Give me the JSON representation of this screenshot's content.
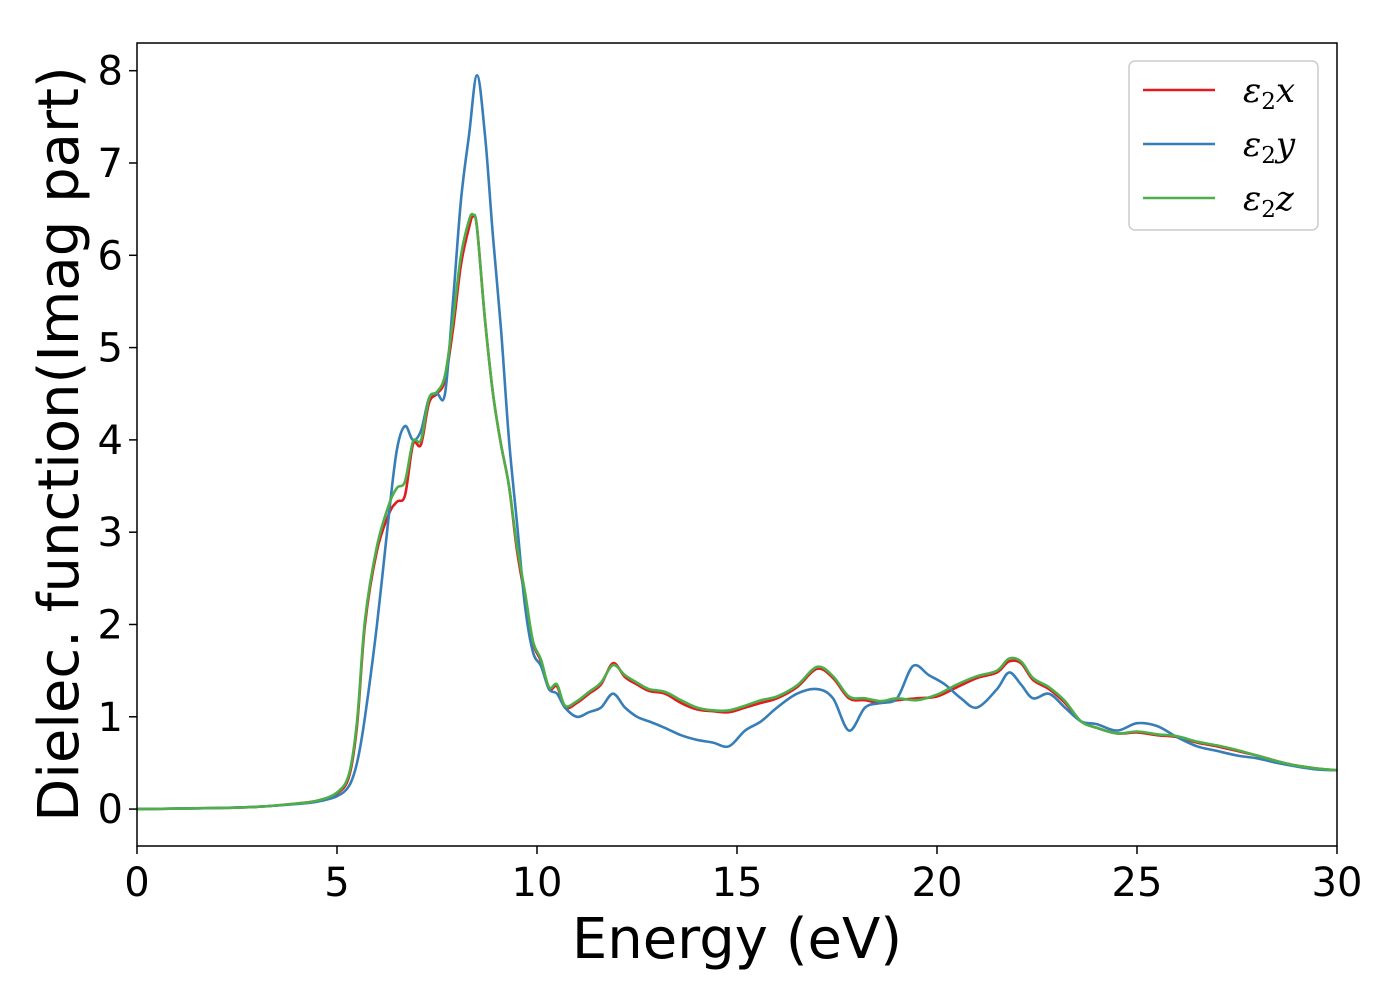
{
  "chart_data": {
    "type": "line",
    "title": "",
    "xlabel": "Energy (eV)",
    "ylabel": "Dielec. function(Imag part)",
    "xlim": [
      0,
      30
    ],
    "ylim": [
      -0.4,
      8.3
    ],
    "xticks": [
      "0",
      "5",
      "10",
      "15",
      "20",
      "25",
      "30"
    ],
    "yticks": [
      "0",
      "1",
      "2",
      "3",
      "4",
      "5",
      "6",
      "7",
      "8"
    ],
    "grid": false,
    "legend_position": "top-right",
    "series": [
      {
        "name": "ε₂x",
        "legend": {
          "base": "ε",
          "sub": "2",
          "tail": "x"
        },
        "color": "#e41a1c",
        "points": [
          [
            0,
            0.0
          ],
          [
            1,
            0.005
          ],
          [
            2,
            0.012
          ],
          [
            3,
            0.025
          ],
          [
            4,
            0.06
          ],
          [
            4.5,
            0.09
          ],
          [
            5,
            0.17
          ],
          [
            5.3,
            0.35
          ],
          [
            5.5,
            0.9
          ],
          [
            5.7,
            2.0
          ],
          [
            6.0,
            2.8
          ],
          [
            6.3,
            3.2
          ],
          [
            6.5,
            3.33
          ],
          [
            6.7,
            3.4
          ],
          [
            6.9,
            3.95
          ],
          [
            7.1,
            3.95
          ],
          [
            7.3,
            4.4
          ],
          [
            7.5,
            4.5
          ],
          [
            7.7,
            4.65
          ],
          [
            7.9,
            5.2
          ],
          [
            8.1,
            5.9
          ],
          [
            8.3,
            6.3
          ],
          [
            8.4,
            6.42
          ],
          [
            8.5,
            6.3
          ],
          [
            8.7,
            5.3
          ],
          [
            8.9,
            4.5
          ],
          [
            9.1,
            3.95
          ],
          [
            9.3,
            3.5
          ],
          [
            9.5,
            2.8
          ],
          [
            9.7,
            2.3
          ],
          [
            9.9,
            1.8
          ],
          [
            10.1,
            1.6
          ],
          [
            10.3,
            1.3
          ],
          [
            10.5,
            1.33
          ],
          [
            10.7,
            1.1
          ],
          [
            11.0,
            1.15
          ],
          [
            11.3,
            1.25
          ],
          [
            11.6,
            1.35
          ],
          [
            11.9,
            1.58
          ],
          [
            12.2,
            1.43
          ],
          [
            12.5,
            1.35
          ],
          [
            12.8,
            1.28
          ],
          [
            13.2,
            1.25
          ],
          [
            13.6,
            1.15
          ],
          [
            14.0,
            1.08
          ],
          [
            14.4,
            1.06
          ],
          [
            14.8,
            1.05
          ],
          [
            15.2,
            1.1
          ],
          [
            15.6,
            1.15
          ],
          [
            16.0,
            1.2
          ],
          [
            16.5,
            1.32
          ],
          [
            17.0,
            1.52
          ],
          [
            17.4,
            1.42
          ],
          [
            17.8,
            1.2
          ],
          [
            18.2,
            1.18
          ],
          [
            18.6,
            1.15
          ],
          [
            19.0,
            1.18
          ],
          [
            19.5,
            1.2
          ],
          [
            20.0,
            1.22
          ],
          [
            20.5,
            1.32
          ],
          [
            21.0,
            1.42
          ],
          [
            21.5,
            1.48
          ],
          [
            21.8,
            1.6
          ],
          [
            22.1,
            1.58
          ],
          [
            22.4,
            1.4
          ],
          [
            22.8,
            1.3
          ],
          [
            23.2,
            1.15
          ],
          [
            23.6,
            0.95
          ],
          [
            24.0,
            0.88
          ],
          [
            24.5,
            0.82
          ],
          [
            25.0,
            0.83
          ],
          [
            25.5,
            0.8
          ],
          [
            26.0,
            0.78
          ],
          [
            26.5,
            0.72
          ],
          [
            27.0,
            0.68
          ],
          [
            27.5,
            0.63
          ],
          [
            28.0,
            0.58
          ],
          [
            28.5,
            0.52
          ],
          [
            29.0,
            0.47
          ],
          [
            29.5,
            0.44
          ],
          [
            30.0,
            0.42
          ]
        ]
      },
      {
        "name": "ε₂y",
        "legend": {
          "base": "ε",
          "sub": "2",
          "tail": "y"
        },
        "color": "#377eb8",
        "points": [
          [
            0,
            0.0
          ],
          [
            1,
            0.005
          ],
          [
            2,
            0.012
          ],
          [
            3,
            0.025
          ],
          [
            4,
            0.055
          ],
          [
            4.5,
            0.08
          ],
          [
            5,
            0.14
          ],
          [
            5.3,
            0.25
          ],
          [
            5.5,
            0.5
          ],
          [
            5.7,
            1.0
          ],
          [
            6.0,
            2.0
          ],
          [
            6.3,
            3.2
          ],
          [
            6.5,
            3.9
          ],
          [
            6.7,
            4.15
          ],
          [
            6.9,
            4.0
          ],
          [
            7.1,
            4.1
          ],
          [
            7.3,
            4.45
          ],
          [
            7.5,
            4.5
          ],
          [
            7.7,
            4.5
          ],
          [
            7.9,
            5.5
          ],
          [
            8.1,
            6.6
          ],
          [
            8.3,
            7.3
          ],
          [
            8.5,
            7.95
          ],
          [
            8.7,
            7.3
          ],
          [
            8.9,
            6.2
          ],
          [
            9.1,
            5.2
          ],
          [
            9.3,
            4.0
          ],
          [
            9.5,
            3.1
          ],
          [
            9.7,
            2.2
          ],
          [
            9.9,
            1.7
          ],
          [
            10.1,
            1.55
          ],
          [
            10.3,
            1.3
          ],
          [
            10.5,
            1.25
          ],
          [
            10.7,
            1.1
          ],
          [
            11.0,
            1.0
          ],
          [
            11.3,
            1.05
          ],
          [
            11.6,
            1.1
          ],
          [
            11.9,
            1.25
          ],
          [
            12.2,
            1.1
          ],
          [
            12.5,
            1.0
          ],
          [
            12.8,
            0.95
          ],
          [
            13.2,
            0.88
          ],
          [
            13.6,
            0.8
          ],
          [
            14.0,
            0.75
          ],
          [
            14.4,
            0.72
          ],
          [
            14.8,
            0.68
          ],
          [
            15.2,
            0.85
          ],
          [
            15.6,
            0.95
          ],
          [
            16.0,
            1.1
          ],
          [
            16.5,
            1.25
          ],
          [
            17.0,
            1.3
          ],
          [
            17.4,
            1.2
          ],
          [
            17.8,
            0.85
          ],
          [
            18.2,
            1.1
          ],
          [
            18.6,
            1.15
          ],
          [
            19.0,
            1.2
          ],
          [
            19.4,
            1.55
          ],
          [
            19.8,
            1.45
          ],
          [
            20.2,
            1.35
          ],
          [
            20.6,
            1.2
          ],
          [
            21.0,
            1.1
          ],
          [
            21.5,
            1.3
          ],
          [
            21.8,
            1.48
          ],
          [
            22.1,
            1.35
          ],
          [
            22.4,
            1.2
          ],
          [
            22.8,
            1.25
          ],
          [
            23.2,
            1.1
          ],
          [
            23.6,
            0.95
          ],
          [
            24.0,
            0.92
          ],
          [
            24.5,
            0.85
          ],
          [
            25.0,
            0.93
          ],
          [
            25.5,
            0.9
          ],
          [
            26.0,
            0.78
          ],
          [
            26.5,
            0.68
          ],
          [
            27.0,
            0.63
          ],
          [
            27.5,
            0.58
          ],
          [
            28.0,
            0.55
          ],
          [
            28.5,
            0.5
          ],
          [
            29.0,
            0.46
          ],
          [
            29.5,
            0.43
          ],
          [
            30.0,
            0.42
          ]
        ]
      },
      {
        "name": "ε₂z",
        "legend": {
          "base": "ε",
          "sub": "2",
          "tail": "z"
        },
        "color": "#4daf4a",
        "points": [
          [
            0,
            0.0
          ],
          [
            1,
            0.005
          ],
          [
            2,
            0.012
          ],
          [
            3,
            0.025
          ],
          [
            4,
            0.06
          ],
          [
            4.5,
            0.09
          ],
          [
            5,
            0.18
          ],
          [
            5.3,
            0.38
          ],
          [
            5.5,
            0.95
          ],
          [
            5.7,
            2.05
          ],
          [
            6.0,
            2.85
          ],
          [
            6.3,
            3.3
          ],
          [
            6.5,
            3.48
          ],
          [
            6.7,
            3.55
          ],
          [
            6.9,
            3.98
          ],
          [
            7.1,
            4.0
          ],
          [
            7.3,
            4.45
          ],
          [
            7.5,
            4.52
          ],
          [
            7.7,
            4.7
          ],
          [
            7.9,
            5.3
          ],
          [
            8.1,
            6.0
          ],
          [
            8.3,
            6.38
          ],
          [
            8.4,
            6.44
          ],
          [
            8.5,
            6.3
          ],
          [
            8.7,
            5.3
          ],
          [
            8.9,
            4.5
          ],
          [
            9.1,
            3.95
          ],
          [
            9.3,
            3.5
          ],
          [
            9.5,
            2.85
          ],
          [
            9.7,
            2.35
          ],
          [
            9.9,
            1.82
          ],
          [
            10.1,
            1.62
          ],
          [
            10.3,
            1.32
          ],
          [
            10.5,
            1.35
          ],
          [
            10.7,
            1.12
          ],
          [
            11.0,
            1.17
          ],
          [
            11.3,
            1.27
          ],
          [
            11.6,
            1.37
          ],
          [
            11.9,
            1.56
          ],
          [
            12.2,
            1.45
          ],
          [
            12.5,
            1.37
          ],
          [
            12.8,
            1.3
          ],
          [
            13.2,
            1.27
          ],
          [
            13.6,
            1.18
          ],
          [
            14.0,
            1.1
          ],
          [
            14.4,
            1.07
          ],
          [
            14.8,
            1.07
          ],
          [
            15.2,
            1.12
          ],
          [
            15.6,
            1.18
          ],
          [
            16.0,
            1.22
          ],
          [
            16.5,
            1.34
          ],
          [
            17.0,
            1.54
          ],
          [
            17.4,
            1.44
          ],
          [
            17.8,
            1.22
          ],
          [
            18.2,
            1.2
          ],
          [
            18.6,
            1.17
          ],
          [
            19.0,
            1.2
          ],
          [
            19.5,
            1.18
          ],
          [
            20.0,
            1.24
          ],
          [
            20.5,
            1.35
          ],
          [
            21.0,
            1.44
          ],
          [
            21.5,
            1.5
          ],
          [
            21.8,
            1.63
          ],
          [
            22.1,
            1.6
          ],
          [
            22.4,
            1.42
          ],
          [
            22.8,
            1.32
          ],
          [
            23.2,
            1.17
          ],
          [
            23.6,
            0.95
          ],
          [
            24.0,
            0.88
          ],
          [
            24.5,
            0.82
          ],
          [
            25.0,
            0.84
          ],
          [
            25.5,
            0.81
          ],
          [
            26.0,
            0.79
          ],
          [
            26.5,
            0.73
          ],
          [
            27.0,
            0.69
          ],
          [
            27.5,
            0.64
          ],
          [
            28.0,
            0.58
          ],
          [
            28.5,
            0.52
          ],
          [
            29.0,
            0.47
          ],
          [
            29.5,
            0.44
          ],
          [
            30.0,
            0.42
          ]
        ]
      }
    ]
  }
}
